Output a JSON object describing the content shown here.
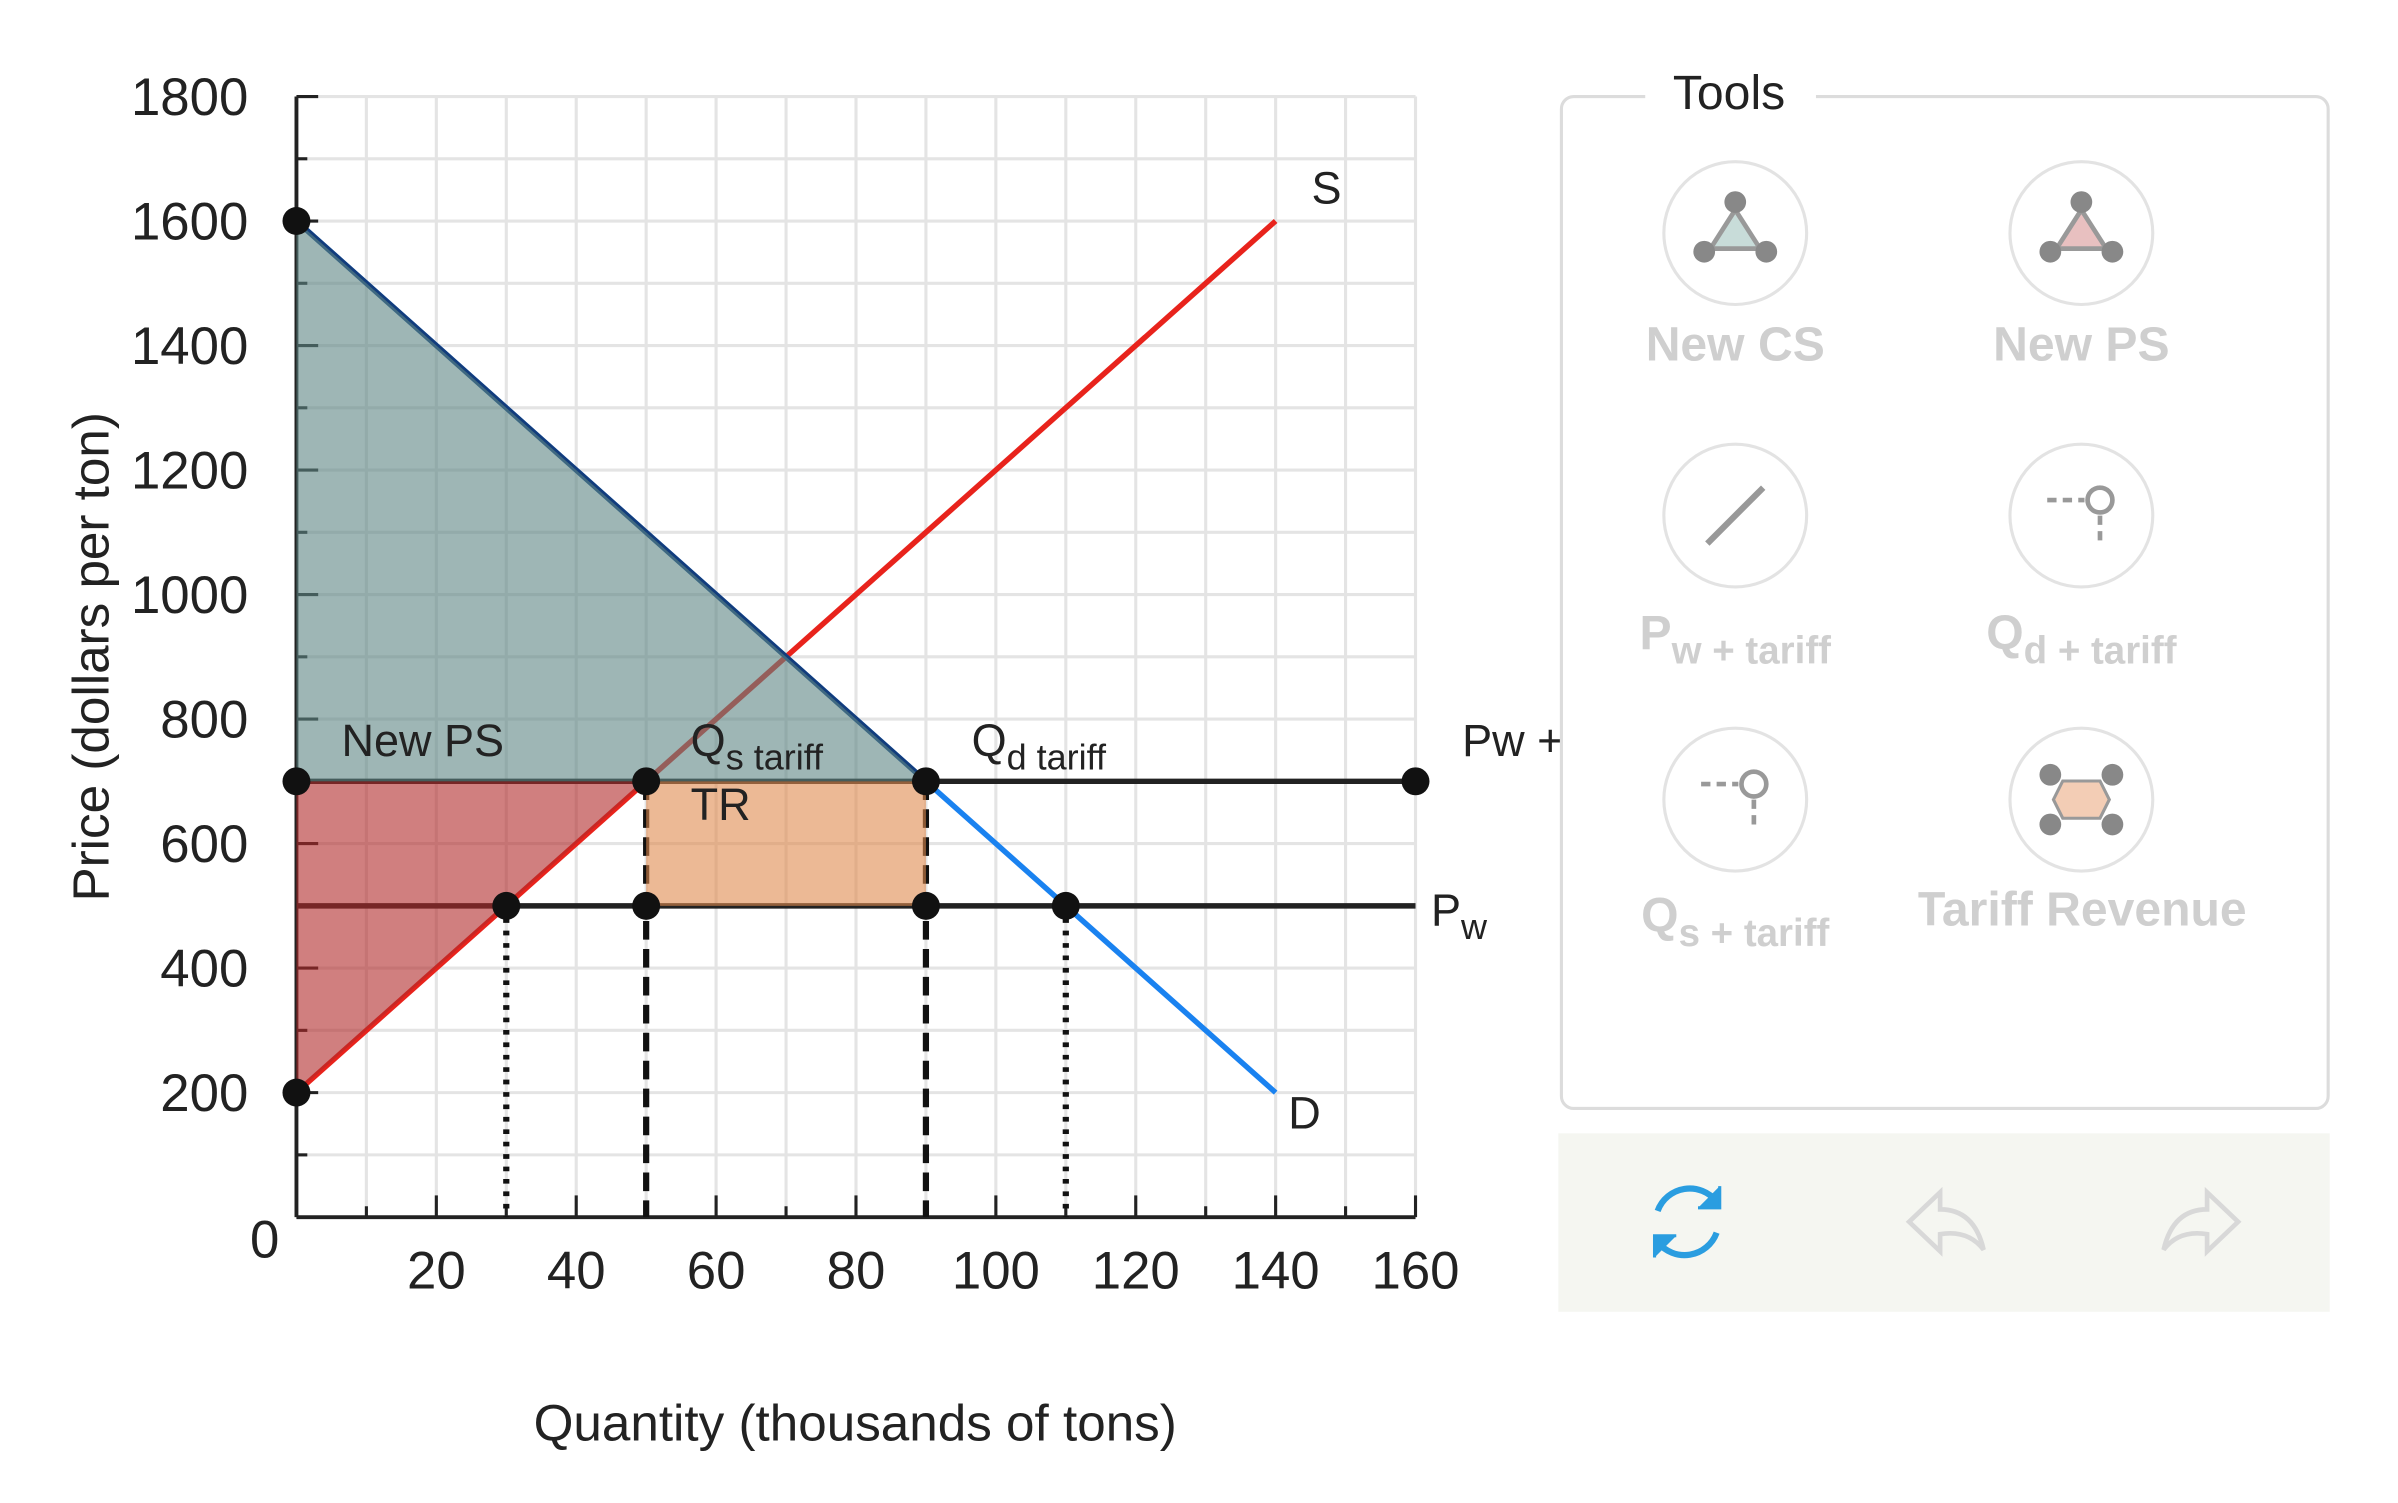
{
  "chart_data": {
    "type": "line",
    "x_label": "Quantity (thousands of tons)",
    "y_label": "Price (dollars per ton)",
    "xlim": [
      0,
      160
    ],
    "ylim": [
      0,
      1800
    ],
    "xticks": [
      20,
      40,
      60,
      80,
      100,
      120,
      140,
      160
    ],
    "yticks": [
      0,
      200,
      400,
      600,
      800,
      1000,
      1200,
      1400,
      1600,
      1800
    ],
    "xminor": [
      10,
      30,
      50,
      70,
      90,
      110,
      130,
      150
    ],
    "yminor": [
      100,
      300,
      500,
      700,
      900,
      1100,
      1300,
      1500,
      1700
    ],
    "grid": true,
    "series": [
      {
        "name": "S",
        "color": "#e8231c",
        "x": [
          0,
          140
        ],
        "values": [
          200,
          1600
        ]
      },
      {
        "name": "D",
        "color": "#1a82f0",
        "x": [
          0,
          140
        ],
        "values": [
          1600,
          200
        ]
      },
      {
        "name": {
          "main": "P",
          "sub": "w"
        },
        "color": "#222222",
        "x": [
          0,
          160
        ],
        "values": [
          500,
          500
        ]
      },
      {
        "name": "Pw + t",
        "color": "#222222",
        "x": [
          0,
          160
        ],
        "values": [
          700,
          700
        ]
      }
    ],
    "demand_upper_color": "#123c7c",
    "areas": [
      {
        "color": "#5e8584",
        "x": [
          0,
          0,
          90
        ],
        "y": [
          1600,
          700,
          700
        ]
      },
      {
        "color": "#b02a2a",
        "x": [
          0,
          0,
          50
        ],
        "y": [
          700,
          200,
          700
        ]
      },
      {
        "color": "#e08a4e",
        "x": [
          50,
          50,
          90,
          90
        ],
        "y": [
          500,
          700,
          700,
          500
        ]
      }
    ],
    "guides": [
      {
        "x": 30,
        "y": 500,
        "style": "dotted"
      },
      {
        "x": 50,
        "y": 700,
        "style": "dashed"
      },
      {
        "x": 90,
        "y": 700,
        "style": "dashed"
      },
      {
        "x": 110,
        "y": 500,
        "style": "dotted"
      }
    ],
    "points": {
      "x": [
        0,
        0,
        0,
        50,
        90,
        160,
        30,
        50,
        90,
        110
      ],
      "y": [
        1600,
        700,
        200,
        700,
        700,
        700,
        500,
        500,
        500,
        500
      ]
    },
    "annotations": [
      {
        "main": "New PS"
      },
      {
        "main": "Q",
        "sub": "s tariff"
      },
      {
        "main": "Q",
        "sub": "d tariff"
      },
      {
        "main": "TR"
      }
    ]
  },
  "tools": {
    "title": "Tools",
    "buttons": [
      {
        "main": "New CS"
      },
      {
        "main": "New PS"
      },
      {
        "main": "P",
        "sub": "w + tariff"
      },
      {
        "main": "Q",
        "sub": "d + tariff"
      },
      {
        "main": "Q",
        "sub": "s + tariff"
      },
      {
        "main": "Tariff Revenue"
      }
    ]
  }
}
